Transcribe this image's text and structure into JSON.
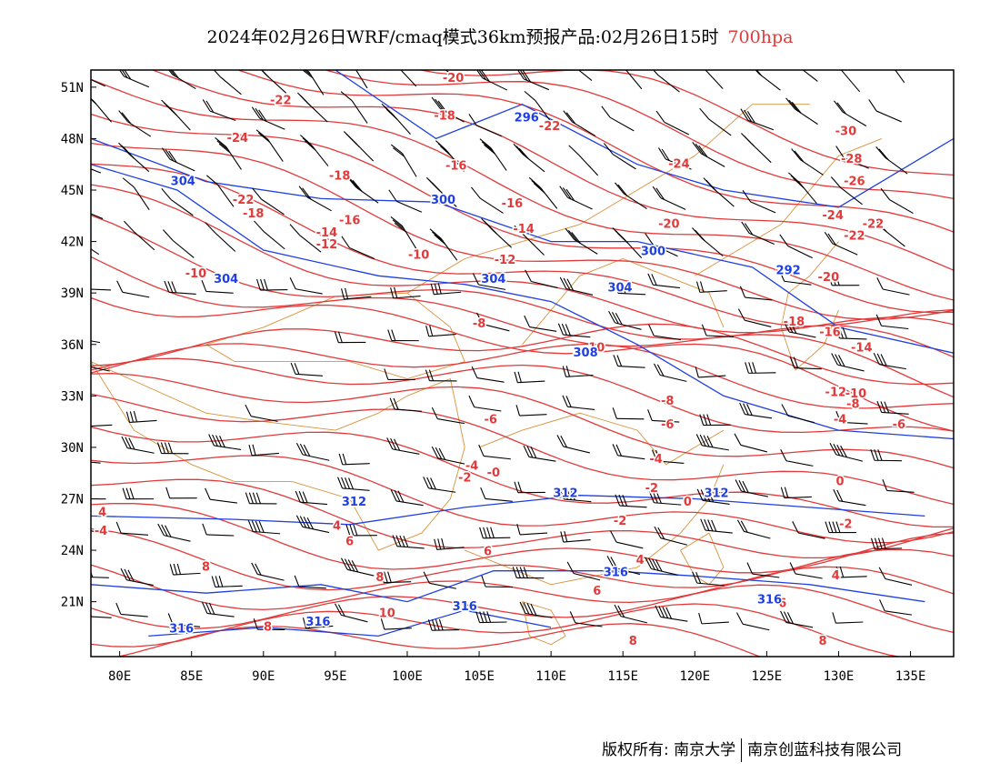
{
  "title": {
    "main": "2024年02月26日WRF/cmaq模式36km预报产品:02月26日15时",
    "level": "700hpa",
    "level_color": "#e23a3a"
  },
  "axes": {
    "lat_labels": [
      "51N",
      "48N",
      "45N",
      "42N",
      "39N",
      "36N",
      "33N",
      "30N",
      "27N",
      "24N",
      "21N"
    ],
    "lat_values": [
      51,
      48,
      45,
      42,
      39,
      36,
      33,
      30,
      27,
      24,
      21
    ],
    "lon_labels": [
      "80E",
      "85E",
      "90E",
      "95E",
      "100E",
      "105E",
      "110E",
      "115E",
      "120E",
      "125E",
      "130E",
      "135E"
    ],
    "lon_values": [
      80,
      85,
      90,
      95,
      100,
      105,
      110,
      115,
      120,
      125,
      130,
      135
    ],
    "lon_range": [
      78,
      138
    ],
    "lat_range": [
      17.8,
      52.0
    ]
  },
  "layers": {
    "temperature_contours": {
      "color": "#e23a3a",
      "unit": "°C"
    },
    "geopotential_contours": {
      "color": "#1f3fe0",
      "unit": "dagpm"
    },
    "borders": {
      "color": "#d8923a"
    },
    "wind_barbs": {
      "color": "#000000"
    }
  },
  "temp_labels": [
    {
      "t": "-20",
      "lon": 103.2,
      "lat": 51.3
    },
    {
      "t": "-22",
      "lon": 91.2,
      "lat": 50.0
    },
    {
      "t": "-18",
      "lon": 102.6,
      "lat": 49.1
    },
    {
      "t": "-22",
      "lon": 109.9,
      "lat": 48.5
    },
    {
      "t": "-24",
      "lon": 88.2,
      "lat": 47.8
    },
    {
      "t": "-18",
      "lon": 95.3,
      "lat": 45.6
    },
    {
      "t": "-16",
      "lon": 103.4,
      "lat": 46.2
    },
    {
      "t": "-24",
      "lon": 118.9,
      "lat": 46.3
    },
    {
      "t": "-30",
      "lon": 130.5,
      "lat": 48.2
    },
    {
      "t": "-28",
      "lon": 130.9,
      "lat": 46.6
    },
    {
      "t": "-26",
      "lon": 131.1,
      "lat": 45.3
    },
    {
      "t": "-22",
      "lon": 88.6,
      "lat": 44.2
    },
    {
      "t": "-18",
      "lon": 89.3,
      "lat": 43.4
    },
    {
      "t": "-16",
      "lon": 96.0,
      "lat": 43.0
    },
    {
      "t": "-16",
      "lon": 107.3,
      "lat": 44.0
    },
    {
      "t": "-14",
      "lon": 94.4,
      "lat": 42.3
    },
    {
      "t": "-14",
      "lon": 108.1,
      "lat": 42.5
    },
    {
      "t": "-12",
      "lon": 94.4,
      "lat": 41.6
    },
    {
      "t": "-10",
      "lon": 100.8,
      "lat": 41.0
    },
    {
      "t": "-12",
      "lon": 106.8,
      "lat": 40.7
    },
    {
      "t": "-10",
      "lon": 85.3,
      "lat": 39.9
    },
    {
      "t": "-20",
      "lon": 118.2,
      "lat": 42.8
    },
    {
      "t": "-24",
      "lon": 129.6,
      "lat": 43.3
    },
    {
      "t": "-22",
      "lon": 132.4,
      "lat": 42.8
    },
    {
      "t": "-22",
      "lon": 131.1,
      "lat": 42.1
    },
    {
      "t": "-20",
      "lon": 129.3,
      "lat": 39.7
    },
    {
      "t": "-18",
      "lon": 126.9,
      "lat": 37.1
    },
    {
      "t": "-16",
      "lon": 129.4,
      "lat": 36.5
    },
    {
      "t": "-14",
      "lon": 131.6,
      "lat": 35.6
    },
    {
      "t": "-8",
      "lon": 105.0,
      "lat": 37.0
    },
    {
      "t": "-10",
      "lon": 113.0,
      "lat": 35.6
    },
    {
      "t": "-8",
      "lon": 118.1,
      "lat": 32.5
    },
    {
      "t": "-6",
      "lon": 118.1,
      "lat": 31.1
    },
    {
      "t": "-6",
      "lon": 105.8,
      "lat": 31.4
    },
    {
      "t": "-12",
      "lon": 129.8,
      "lat": 33.0
    },
    {
      "t": "-10",
      "lon": 131.2,
      "lat": 32.9
    },
    {
      "t": "-8",
      "lon": 131.0,
      "lat": 32.3
    },
    {
      "t": "-4",
      "lon": 130.1,
      "lat": 31.4
    },
    {
      "t": "-6",
      "lon": 134.2,
      "lat": 31.1
    },
    {
      "t": "-4",
      "lon": 117.3,
      "lat": 29.1
    },
    {
      "t": "-4",
      "lon": 104.5,
      "lat": 28.7
    },
    {
      "t": "-2",
      "lon": 104.0,
      "lat": 28.0
    },
    {
      "t": "-0",
      "lon": 106.0,
      "lat": 28.3
    },
    {
      "t": "0",
      "lon": 130.1,
      "lat": 27.8
    },
    {
      "t": "-2",
      "lon": 117.0,
      "lat": 27.4
    },
    {
      "t": "0",
      "lon": 119.5,
      "lat": 26.6
    },
    {
      "t": "-2",
      "lon": 114.8,
      "lat": 25.5
    },
    {
      "t": "-2",
      "lon": 130.5,
      "lat": 25.3
    },
    {
      "t": "4",
      "lon": 78.8,
      "lat": 26.0
    },
    {
      "t": "4",
      "lon": 95.1,
      "lat": 25.2
    },
    {
      "t": "6",
      "lon": 96.0,
      "lat": 24.3
    },
    {
      "t": "6",
      "lon": 105.6,
      "lat": 23.7
    },
    {
      "t": "8",
      "lon": 86.0,
      "lat": 22.8
    },
    {
      "t": "8",
      "lon": 98.1,
      "lat": 22.2
    },
    {
      "t": "4",
      "lon": 116.2,
      "lat": 23.2
    },
    {
      "t": "4",
      "lon": 129.8,
      "lat": 22.3
    },
    {
      "t": "6",
      "lon": 113.2,
      "lat": 21.4
    },
    {
      "t": "6",
      "lon": 126.1,
      "lat": 20.7
    },
    {
      "t": "10",
      "lon": 98.6,
      "lat": 20.1
    },
    {
      "t": "8",
      "lon": 90.3,
      "lat": 19.3
    },
    {
      "t": "8",
      "lon": 115.7,
      "lat": 18.5
    },
    {
      "t": "8",
      "lon": 128.9,
      "lat": 18.5
    },
    {
      "t": "-4",
      "lon": 78.7,
      "lat": 24.9
    }
  ],
  "height_labels": [
    {
      "t": "296",
      "lon": 108.3,
      "lat": 49.0
    },
    {
      "t": "304",
      "lon": 84.4,
      "lat": 45.3
    },
    {
      "t": "300",
      "lon": 102.5,
      "lat": 44.2
    },
    {
      "t": "300",
      "lon": 117.1,
      "lat": 41.2
    },
    {
      "t": "304",
      "lon": 87.4,
      "lat": 39.6
    },
    {
      "t": "304",
      "lon": 106.0,
      "lat": 39.6
    },
    {
      "t": "292",
      "lon": 126.5,
      "lat": 40.1
    },
    {
      "t": "304",
      "lon": 114.8,
      "lat": 39.1
    },
    {
      "t": "308",
      "lon": 112.4,
      "lat": 35.3
    },
    {
      "t": "312",
      "lon": 96.3,
      "lat": 26.6
    },
    {
      "t": "312",
      "lon": 111.0,
      "lat": 27.1
    },
    {
      "t": "312",
      "lon": 121.5,
      "lat": 27.1
    },
    {
      "t": "316",
      "lon": 114.5,
      "lat": 22.5
    },
    {
      "t": "316",
      "lon": 104.0,
      "lat": 20.5
    },
    {
      "t": "316",
      "lon": 125.2,
      "lat": 20.9
    },
    {
      "t": "316",
      "lon": 93.8,
      "lat": 19.6
    },
    {
      "t": "316",
      "lon": 84.3,
      "lat": 19.2
    }
  ],
  "footer": {
    "left": "版权所有: 南京大学",
    "right": "南京创蓝科技有限公司"
  }
}
